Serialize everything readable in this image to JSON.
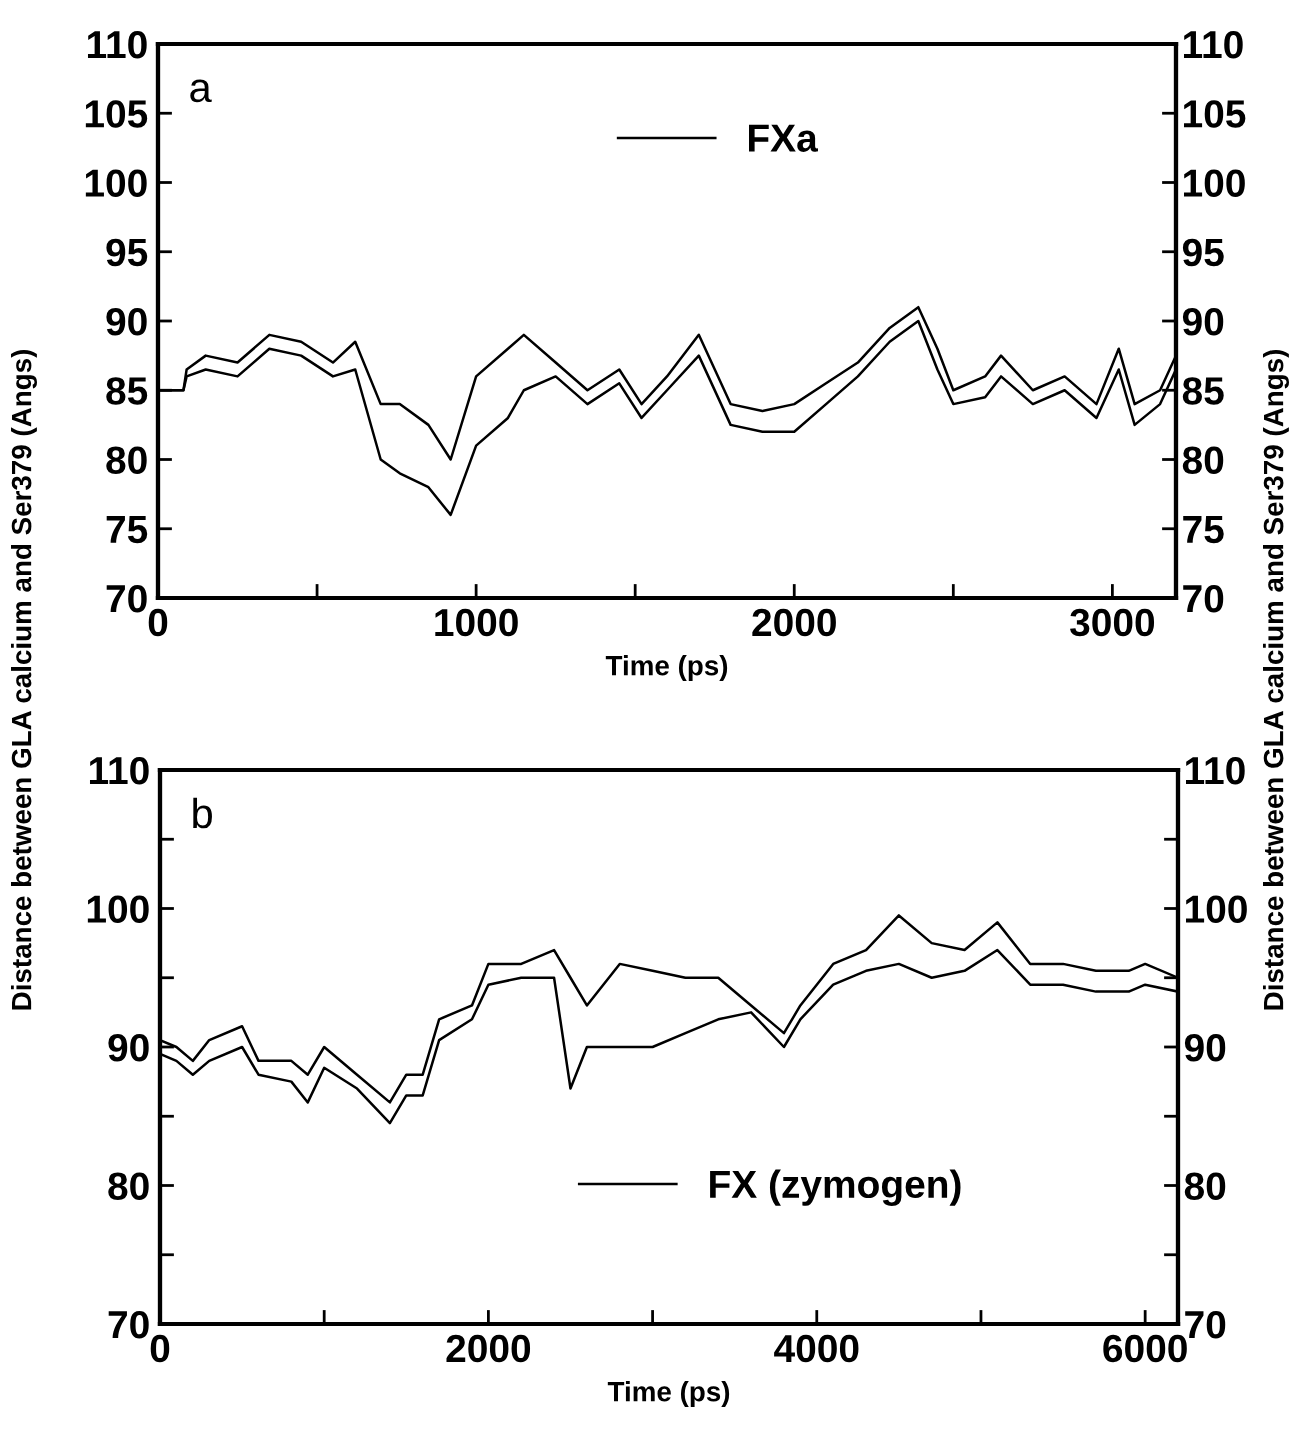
{
  "chart_data": [
    {
      "type": "line",
      "annotations": [
        "a"
      ],
      "xlabel": "Time (ps)",
      "ylabel": "Distance between GLA calcium and Ser379 (Angs)",
      "y2label": "Distance between GLA calcium and Ser379 (Angs)",
      "xlim": [
        0,
        3200
      ],
      "xticks": [
        0,
        {
          "value": 500,
          "label": null
        },
        1000,
        {
          "value": 1500,
          "label": null
        },
        2000,
        {
          "value": 2500,
          "label": null
        },
        3000
      ],
      "ylim": [
        70,
        110
      ],
      "yticks": [
        70,
        75,
        80,
        85,
        90,
        95,
        100,
        105,
        110
      ],
      "y2lim": [
        70,
        110
      ],
      "y2ticks": [
        70,
        75,
        80,
        85,
        90,
        95,
        100,
        105,
        110
      ],
      "legend": "top",
      "grid": false,
      "line_style": "solid",
      "marker": "none",
      "series": [
        {
          "name": "FXa",
          "color": "#000000",
          "x": [
            0,
            80,
            90,
            150,
            250,
            350,
            450,
            550,
            620,
            700,
            760,
            850,
            920,
            1000,
            1100,
            1150,
            1250,
            1350,
            1450,
            1520,
            1600,
            1700,
            1800,
            1900,
            2000,
            2100,
            2200,
            2300,
            2390,
            2450,
            2500,
            2600,
            2650,
            2750,
            2850,
            2950,
            3020,
            3070,
            3150,
            3200
          ],
          "values": [
            85,
            85,
            86.5,
            87.5,
            87,
            89,
            88.5,
            87,
            88.5,
            84,
            84,
            82.5,
            80,
            86,
            88,
            89,
            87,
            85,
            86.5,
            84,
            86,
            89,
            84,
            83.5,
            84,
            85.5,
            87,
            89.5,
            91,
            88,
            85,
            86,
            87.5,
            85,
            86,
            84,
            88,
            84,
            85,
            87.5
          ]
        },
        {
          "color": "#000000",
          "x": [
            0,
            80,
            90,
            150,
            250,
            350,
            450,
            550,
            620,
            700,
            760,
            850,
            920,
            1000,
            1100,
            1150,
            1250,
            1350,
            1450,
            1520,
            1600,
            1700,
            1800,
            1900,
            2000,
            2100,
            2200,
            2300,
            2390,
            2450,
            2500,
            2600,
            2650,
            2750,
            2850,
            2950,
            3020,
            3070,
            3150,
            3200
          ],
          "values": [
            85,
            85,
            86,
            86.5,
            86,
            88,
            87.5,
            86,
            86.5,
            80,
            79,
            78,
            76,
            81,
            83,
            85,
            86,
            84,
            85.5,
            83,
            85,
            87.5,
            82.5,
            82,
            82,
            84,
            86,
            88.5,
            90,
            86.5,
            84,
            84.5,
            86,
            84,
            85,
            83,
            86.5,
            82.5,
            84,
            86.5
          ]
        }
      ]
    },
    {
      "type": "line",
      "annotations": [
        "b"
      ],
      "xlabel": "Time (ps)",
      "xlim": [
        0,
        6200
      ],
      "xticks": [
        0,
        {
          "value": 1000,
          "label": null
        },
        2000,
        {
          "value": 3000,
          "label": null
        },
        4000,
        {
          "value": 5000,
          "label": null
        },
        6000
      ],
      "ylim": [
        70,
        110
      ],
      "yticks": [
        70,
        {
          "value": 75,
          "label": null
        },
        80,
        {
          "value": 85,
          "label": null
        },
        90,
        {
          "value": 95,
          "label": null
        },
        100,
        {
          "value": 105,
          "label": null
        },
        110
      ],
      "y2lim": [
        70,
        110
      ],
      "y2ticks": [
        70,
        {
          "value": 75,
          "label": null
        },
        80,
        {
          "value": 85,
          "label": null
        },
        90,
        {
          "value": 95,
          "label": null
        },
        100,
        {
          "value": 105,
          "label": null
        },
        110
      ],
      "legend": "bottom",
      "grid": false,
      "line_style": "solid",
      "marker": "none",
      "series": [
        {
          "name": "FX (zymogen)",
          "color": "#000000",
          "x": [
            0,
            100,
            200,
            300,
            500,
            600,
            800,
            900,
            1000,
            1200,
            1400,
            1500,
            1600,
            1700,
            1900,
            2000,
            2200,
            2400,
            2500,
            2600,
            2800,
            3000,
            3200,
            3400,
            3600,
            3800,
            3900,
            4100,
            4300,
            4500,
            4700,
            4900,
            5100,
            5300,
            5500,
            5700,
            5900,
            6000,
            6200
          ],
          "values": [
            90.5,
            90,
            89,
            90.5,
            91.5,
            89,
            89,
            88,
            90,
            88,
            86,
            88,
            88,
            92,
            93,
            96,
            96,
            97,
            95,
            93,
            96,
            95.5,
            95,
            95,
            93,
            91,
            93,
            96,
            97,
            99.5,
            97.5,
            97,
            99,
            96,
            96,
            95.5,
            95.5,
            96,
            95
          ]
        },
        {
          "color": "#000000",
          "x": [
            0,
            100,
            200,
            300,
            500,
            600,
            800,
            900,
            1000,
            1200,
            1400,
            1500,
            1600,
            1700,
            1900,
            2000,
            2200,
            2400,
            2500,
            2600,
            2800,
            3000,
            3200,
            3400,
            3600,
            3800,
            3900,
            4100,
            4300,
            4500,
            4700,
            4900,
            5100,
            5300,
            5500,
            5700,
            5900,
            6000,
            6200
          ],
          "values": [
            89.5,
            89,
            88,
            89,
            90,
            88,
            87.5,
            86,
            88.5,
            87,
            84.5,
            86.5,
            86.5,
            90.5,
            92,
            94.5,
            95,
            95,
            87,
            90,
            90,
            90,
            91,
            92,
            92.5,
            90,
            92,
            94.5,
            95.5,
            96,
            95,
            95.5,
            97,
            94.5,
            94.5,
            94,
            94,
            94.5,
            94
          ]
        }
      ]
    }
  ]
}
